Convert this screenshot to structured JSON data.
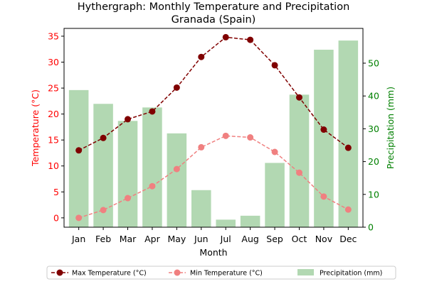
{
  "chart_data": {
    "type": "bar+line",
    "title_line1": "Hythergraph: Monthly Temperature and Precipitation",
    "title_line2": "Granada (Spain)",
    "xlabel": "Month",
    "ylabel_left": "Temperature (°C)",
    "ylabel_right": "Precipitation (mm)",
    "categories": [
      "Jan",
      "Feb",
      "Mar",
      "Apr",
      "May",
      "Jun",
      "Jul",
      "Aug",
      "Sep",
      "Oct",
      "Nov",
      "Dec"
    ],
    "left_ylim": [
      -1.8,
      36.5
    ],
    "left_ticks": [
      0,
      5,
      10,
      15,
      20,
      25,
      30,
      35
    ],
    "right_ylim": [
      0,
      60.6
    ],
    "right_ticks": [
      0,
      10,
      20,
      30,
      40,
      50
    ],
    "series": [
      {
        "name": "Max Temperature (°C)",
        "kind": "line",
        "axis": "left",
        "color": "#800000",
        "dashed": true,
        "values": [
          13.0,
          15.4,
          19.0,
          20.5,
          25.1,
          31.0,
          34.8,
          34.3,
          29.4,
          23.2,
          17.0,
          13.5
        ]
      },
      {
        "name": "Min Temperature (°C)",
        "kind": "line",
        "axis": "left",
        "color": "#f08080",
        "dashed": true,
        "values": [
          0.0,
          1.5,
          3.8,
          6.1,
          9.4,
          13.6,
          15.8,
          15.5,
          12.7,
          8.7,
          4.1,
          1.6
        ]
      },
      {
        "name": "Precipitation (mm)",
        "kind": "bar",
        "axis": "right",
        "color": "#b2d8b2",
        "values": [
          41.8,
          37.6,
          32.4,
          36.5,
          28.6,
          11.3,
          2.3,
          3.5,
          19.6,
          40.4,
          54.1,
          56.9
        ]
      }
    ],
    "legend_position": "bottom-center",
    "colors": {
      "left_axis": "#ff0000",
      "right_axis": "#008000"
    }
  }
}
